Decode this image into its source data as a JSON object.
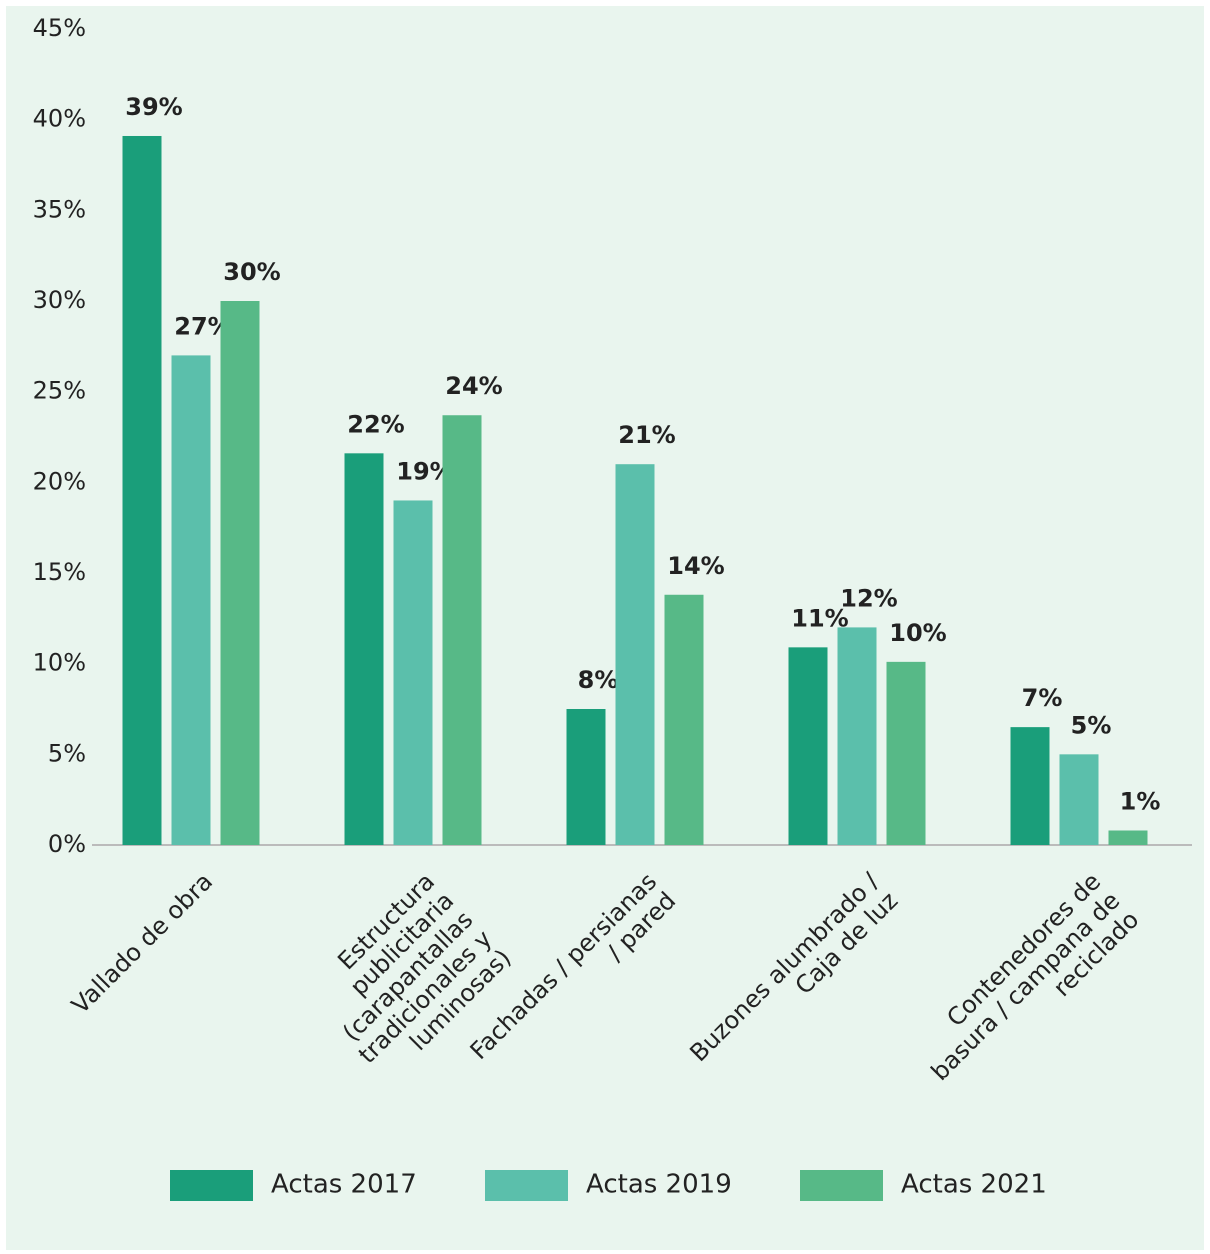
{
  "chart_data": {
    "type": "bar",
    "categories": [
      [
        "Vallado de obra"
      ],
      [
        "Estructura",
        "publicitaria",
        "(carapantallas",
        "tradicionales y",
        "luminosas)"
      ],
      [
        "Fachadas / persianas",
        "/ pared"
      ],
      [
        "Buzones alumbrado /",
        "Caja de luz"
      ],
      [
        "Contenedores de",
        "basura / campana de",
        "reciclado"
      ]
    ],
    "series": [
      {
        "name": "Actas 2017",
        "color": "#1a9e7a",
        "values": [
          39.1,
          21.6,
          7.5,
          10.9,
          6.5
        ],
        "value_labels": [
          "39%",
          "22%",
          "8%",
          "11%",
          "7%"
        ]
      },
      {
        "name": "Actas 2019",
        "color": "#5bbfab",
        "values": [
          27.0,
          19.0,
          21.0,
          12.0,
          5.0
        ],
        "value_labels": [
          "27%",
          "19%",
          "21%",
          "12%",
          "5%"
        ]
      },
      {
        "name": "Actas 2021",
        "color": "#57b987",
        "values": [
          30.0,
          23.7,
          13.8,
          10.1,
          0.8
        ],
        "value_labels": [
          "30%",
          "24%",
          "14%",
          "10%",
          "1%"
        ]
      }
    ],
    "ylim": [
      0,
      45
    ],
    "yticks": [
      {
        "value": 0,
        "label": "0%"
      },
      {
        "value": 5,
        "label": "5%"
      },
      {
        "value": 10,
        "label": "10%"
      },
      {
        "value": 15,
        "label": "15%"
      },
      {
        "value": 20,
        "label": "20%"
      },
      {
        "value": 25,
        "label": "25%"
      },
      {
        "value": 30,
        "label": "30%"
      },
      {
        "value": 35,
        "label": "35%"
      },
      {
        "value": 40,
        "label": "40%"
      },
      {
        "value": 45,
        "label": "45%"
      }
    ],
    "grid": false,
    "legend": "bottom"
  }
}
